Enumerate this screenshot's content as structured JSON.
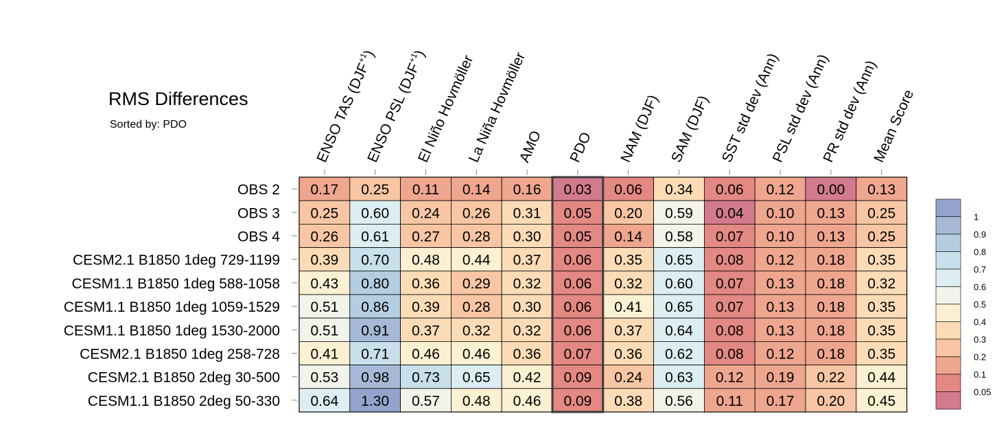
{
  "chart_data": {
    "type": "heatmap",
    "title": "RMS Differences",
    "subtitle": "Sorted by: PDO",
    "columns": [
      "ENSO TAS (DJF+1)",
      "ENSO PSL (DJF+1)",
      "El Niño Hovmöller",
      "La Niña Hovmöller",
      "AMO",
      "PDO",
      "NAM (DJF)",
      "SAM (DJF)",
      "SST std dev (Ann)",
      "PSL std dev (Ann)",
      "PR std dev (Ann)",
      "Mean Score"
    ],
    "column_labels": [
      {
        "base": "ENSO TAS (DJF",
        "sup": "+1",
        "tail": ")"
      },
      {
        "base": "ENSO PSL (DJF",
        "sup": "+1",
        "tail": ")"
      },
      {
        "base": "El Niño Hovmöller",
        "sup": "",
        "tail": ""
      },
      {
        "base": "La Niña Hovmöller",
        "sup": "",
        "tail": ""
      },
      {
        "base": "AMO",
        "sup": "",
        "tail": ""
      },
      {
        "base": "PDO",
        "sup": "",
        "tail": ""
      },
      {
        "base": "NAM (DJF)",
        "sup": "",
        "tail": ""
      },
      {
        "base": "SAM (DJF)",
        "sup": "",
        "tail": ""
      },
      {
        "base": "SST std dev (Ann)",
        "sup": "",
        "tail": ""
      },
      {
        "base": "PSL std dev (Ann)",
        "sup": "",
        "tail": ""
      },
      {
        "base": "PR std dev (Ann)",
        "sup": "",
        "tail": ""
      },
      {
        "base": "Mean Score",
        "sup": "",
        "tail": ""
      }
    ],
    "rows": [
      "OBS 2",
      "OBS 3",
      "OBS 4",
      "CESM2.1 B1850 1deg 729-1199",
      "CESM1.1 B1850 1deg 588-1058",
      "CESM1.1 B1850 1deg 1059-1529",
      "CESM1.1 B1850 1deg 1530-2000",
      "CESM2.1 B1850 1deg 258-728",
      "CESM2.1 B1850 2deg 30-500",
      "CESM1.1 B1850 2deg 50-330"
    ],
    "values": [
      [
        "0.17",
        "0.25",
        "0.11",
        "0.14",
        "0.16",
        "0.03",
        "0.06",
        "0.34",
        "0.06",
        "0.12",
        "0.00",
        "0.13"
      ],
      [
        "0.25",
        "0.60",
        "0.24",
        "0.26",
        "0.31",
        "0.05",
        "0.20",
        "0.59",
        "0.04",
        "0.10",
        "0.13",
        "0.25"
      ],
      [
        "0.26",
        "0.61",
        "0.27",
        "0.28",
        "0.30",
        "0.05",
        "0.14",
        "0.58",
        "0.07",
        "0.10",
        "0.13",
        "0.25"
      ],
      [
        "0.39",
        "0.70",
        "0.48",
        "0.44",
        "0.37",
        "0.06",
        "0.35",
        "0.65",
        "0.08",
        "0.12",
        "0.18",
        "0.35"
      ],
      [
        "0.43",
        "0.80",
        "0.36",
        "0.29",
        "0.32",
        "0.06",
        "0.32",
        "0.60",
        "0.07",
        "0.13",
        "0.18",
        "0.32"
      ],
      [
        "0.51",
        "0.86",
        "0.39",
        "0.28",
        "0.30",
        "0.06",
        "0.41",
        "0.65",
        "0.07",
        "0.13",
        "0.18",
        "0.35"
      ],
      [
        "0.51",
        "0.91",
        "0.37",
        "0.32",
        "0.32",
        "0.06",
        "0.37",
        "0.64",
        "0.08",
        "0.13",
        "0.18",
        "0.35"
      ],
      [
        "0.41",
        "0.71",
        "0.46",
        "0.46",
        "0.36",
        "0.07",
        "0.36",
        "0.62",
        "0.08",
        "0.12",
        "0.18",
        "0.35"
      ],
      [
        "0.53",
        "0.98",
        "0.73",
        "0.65",
        "0.42",
        "0.09",
        "0.24",
        "0.63",
        "0.12",
        "0.19",
        "0.22",
        "0.44"
      ],
      [
        "0.64",
        "1.30",
        "0.57",
        "0.48",
        "0.46",
        "0.09",
        "0.38",
        "0.56",
        "0.11",
        "0.17",
        "0.20",
        "0.45"
      ]
    ],
    "highlight_column": "PDO",
    "colorbar": {
      "labels": [
        "1",
        "0.9",
        "0.8",
        "0.7",
        "0.6",
        "0.5",
        "0.4",
        "0.3",
        "0.2",
        "0.1",
        "0.05"
      ],
      "bins": [
        {
          "min": 1.0,
          "color": "#93a4cc"
        },
        {
          "min": 0.9,
          "color": "#a6bad8"
        },
        {
          "min": 0.8,
          "color": "#b5cde1"
        },
        {
          "min": 0.7,
          "color": "#c8e0eb"
        },
        {
          "min": 0.6,
          "color": "#ddeef2"
        },
        {
          "min": 0.5,
          "color": "#f2f3ea"
        },
        {
          "min": 0.4,
          "color": "#fcf0d2"
        },
        {
          "min": 0.3,
          "color": "#fbdcb6"
        },
        {
          "min": 0.2,
          "color": "#f8c6a4"
        },
        {
          "min": 0.1,
          "color": "#efa68e"
        },
        {
          "min": 0.05,
          "color": "#e38883"
        },
        {
          "min": -1,
          "color": "#d27a8e"
        }
      ]
    }
  }
}
